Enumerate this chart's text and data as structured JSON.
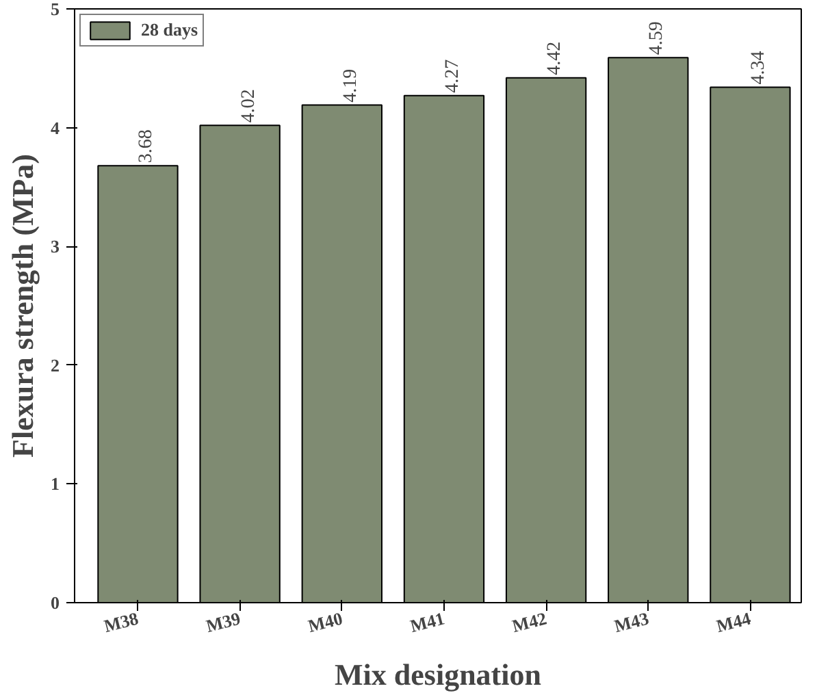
{
  "chart_data": {
    "type": "bar",
    "xlabel": "Mix designation",
    "ylabel": "Flexura strength (MPa)",
    "categories": [
      "M38",
      "M39",
      "M40",
      "M41",
      "M42",
      "M43",
      "M44"
    ],
    "series": [
      {
        "name": "28 days",
        "color": "#7f8b72",
        "values": [
          3.68,
          4.02,
          4.19,
          4.27,
          4.42,
          4.59,
          4.34
        ]
      }
    ],
    "ylim": [
      0,
      5
    ],
    "yticks": [
      0,
      1,
      2,
      3,
      4,
      5
    ],
    "grid": false,
    "legend": "top left",
    "data_labels": true
  }
}
